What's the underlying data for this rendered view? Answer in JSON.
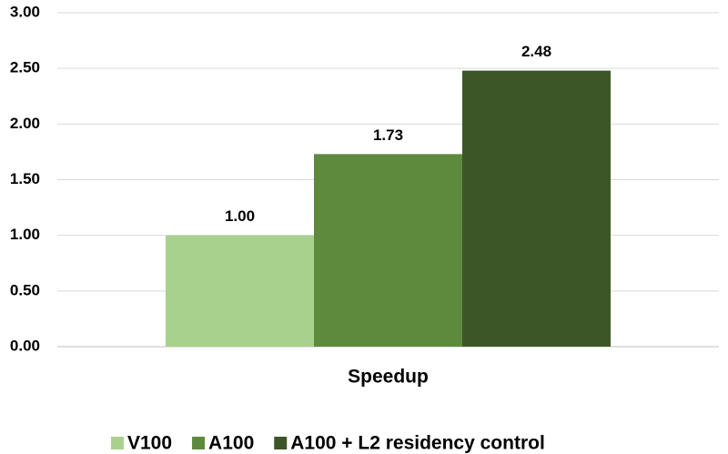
{
  "chart_data": {
    "type": "bar",
    "categories": [
      "Speedup"
    ],
    "series": [
      {
        "name": "V100",
        "color": "#a9d18e",
        "values": [
          1
        ],
        "value_labels": [
          "1.00"
        ]
      },
      {
        "name": "A100",
        "color": "#5e8a3e",
        "values": [
          1.73
        ],
        "value_labels": [
          "1.73"
        ]
      },
      {
        "name": "A100 + L2 residency control",
        "color": "#3d5628",
        "values": [
          2.48
        ],
        "value_labels": [
          "2.48"
        ]
      }
    ],
    "ylim": [
      0,
      3
    ],
    "yticks": [
      {
        "value": 0,
        "label": "0.00"
      },
      {
        "value": 0.5,
        "label": "0.50"
      },
      {
        "value": 1,
        "label": "1.00"
      },
      {
        "value": 1.5,
        "label": "1.50"
      },
      {
        "value": 2,
        "label": "2.00"
      },
      {
        "value": 2.5,
        "label": "2.50"
      },
      {
        "value": 3,
        "label": "3.00"
      }
    ],
    "grid": true
  }
}
